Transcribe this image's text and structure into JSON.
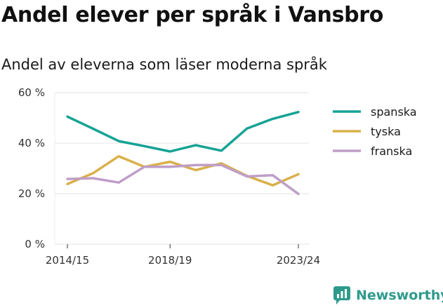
{
  "title": "Andel elever per språk i Vansbro",
  "subtitle": "Andel av eleverna som läser moderna språk",
  "brand": {
    "name": "Newsworthy",
    "color": "#2e9a8c"
  },
  "chart_data": {
    "type": "line",
    "title": "Andel elever per språk i Vansbro",
    "subtitle": "Andel av eleverna som läser moderna språk",
    "xlabel": "",
    "ylabel": "",
    "x": [
      "2014/15",
      "2015/16",
      "2016/17",
      "2017/18",
      "2018/19",
      "2019/20",
      "2020/21",
      "2021/22",
      "2022/23",
      "2023/24"
    ],
    "x_tick_labels": [
      "2014/15",
      "2018/19",
      "2023/24"
    ],
    "y_ticks": [
      0,
      20,
      40,
      60
    ],
    "y_tick_labels": [
      "0 %",
      "20 %",
      "40 %",
      "60 %"
    ],
    "ylim": [
      0,
      60
    ],
    "grid": true,
    "legend_position": "right",
    "series": [
      {
        "name": "spanska",
        "color": "#16a395",
        "values": [
          50.5,
          45.7,
          40.8,
          38.8,
          36.7,
          39.2,
          37,
          45.8,
          49.6,
          52.3
        ]
      },
      {
        "name": "tyska",
        "color": "#d9b04a",
        "values": [
          23.8,
          28.1,
          34.8,
          30.6,
          32.6,
          29.3,
          32,
          27,
          23.3,
          27.7
        ]
      },
      {
        "name": "franska",
        "color": "#bf9ec8",
        "values": [
          25.8,
          26.1,
          24.4,
          30.6,
          30.6,
          31.3,
          31.3,
          26.8,
          27.3,
          19.9
        ]
      }
    ]
  }
}
